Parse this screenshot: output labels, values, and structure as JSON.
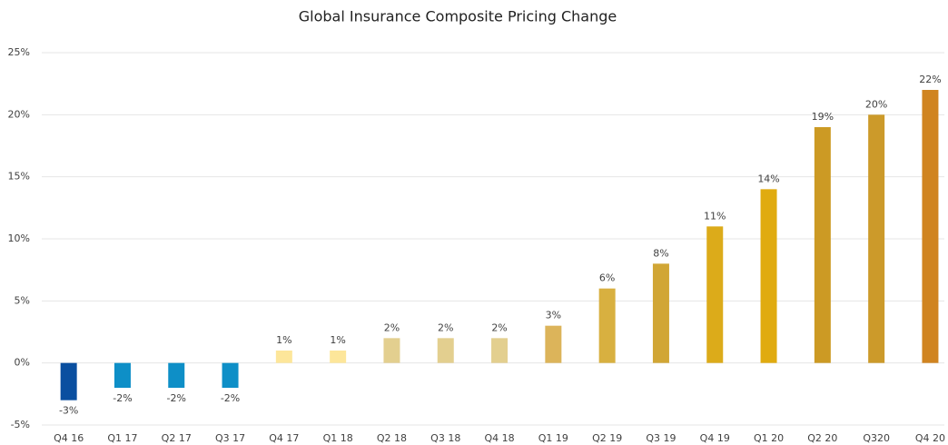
{
  "chart_data": {
    "type": "bar",
    "title": "Global Insurance Composite Pricing Change",
    "categories": [
      "Q4 16",
      "Q1 17",
      "Q2 17",
      "Q3 17",
      "Q4 17",
      "Q1 18",
      "Q2 18",
      "Q3 18",
      "Q4 18",
      "Q1 19",
      "Q2 19",
      "Q3 19",
      "Q4 19",
      "Q1 20",
      "Q2 20",
      "Q320",
      "Q4 20"
    ],
    "values": [
      -3,
      -2,
      -2,
      -2,
      1,
      1,
      2,
      2,
      2,
      3,
      6,
      8,
      11,
      14,
      19,
      20,
      22
    ],
    "value_labels": [
      "-3%",
      "-2%",
      "-2%",
      "-2%",
      "1%",
      "1%",
      "2%",
      "2%",
      "2%",
      "3%",
      "6%",
      "8%",
      "11%",
      "14%",
      "19%",
      "20%",
      "22%"
    ],
    "colors": [
      "#0a4fa0",
      "#0e8fc7",
      "#0e8fc7",
      "#0e8fc7",
      "#fde69a",
      "#fde69a",
      "#e3cf8f",
      "#e3cf8f",
      "#e3cf8f",
      "#dcb45a",
      "#d8b040",
      "#d1a635",
      "#dcab1a",
      "#e0ab10",
      "#cc9a24",
      "#cc9a2a",
      "#d08420"
    ],
    "ylim": [
      -5,
      25
    ],
    "yticks": [
      {
        "value": -5,
        "label": "-5%"
      },
      {
        "value": 0,
        "label": "0%"
      },
      {
        "value": 5,
        "label": "5%"
      },
      {
        "value": 10,
        "label": "10%"
      },
      {
        "value": 15,
        "label": "15%"
      },
      {
        "value": 20,
        "label": "20%"
      },
      {
        "value": 25,
        "label": "25%"
      }
    ],
    "grid": true
  }
}
